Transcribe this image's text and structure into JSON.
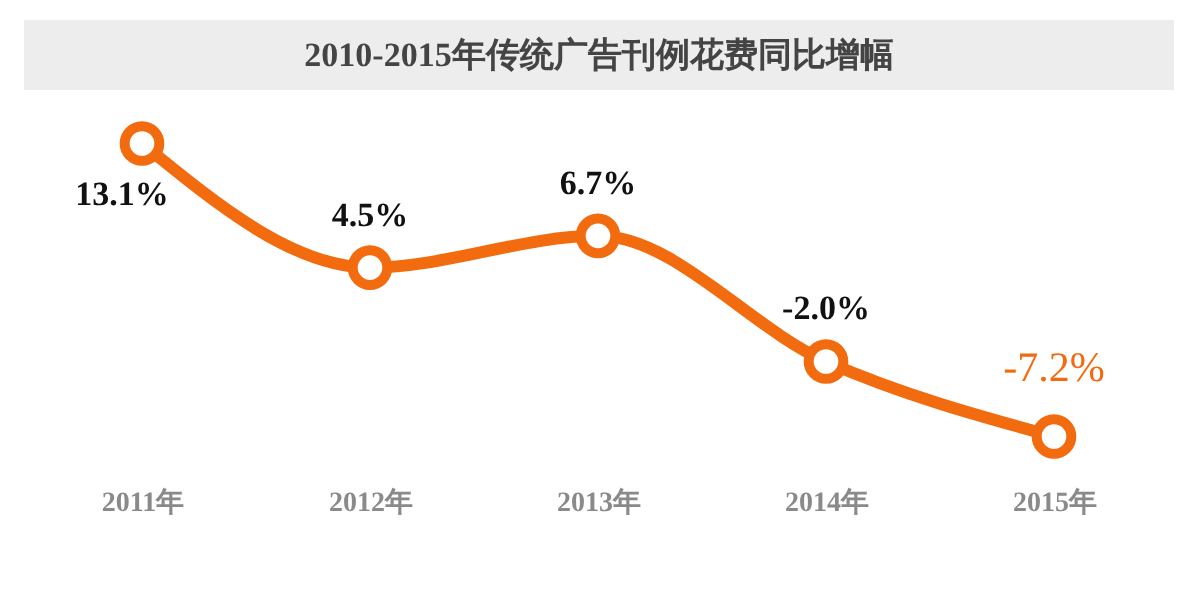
{
  "chart_data": {
    "type": "line",
    "title": "2010-2015年传统广告刊例花费同比增幅",
    "categories": [
      "2011年",
      "2012年",
      "2013年",
      "2014年",
      "2015年"
    ],
    "series": [
      {
        "color": "#f26b0f",
        "values": [
          13.1,
          4.5,
          6.7,
          -2.0,
          -7.2
        ],
        "value_labels": [
          "13.1%",
          "4.5%",
          "6.7%",
          "-2.0%",
          "-7.2%"
        ]
      }
    ],
    "marker": "circle",
    "grid": false
  }
}
